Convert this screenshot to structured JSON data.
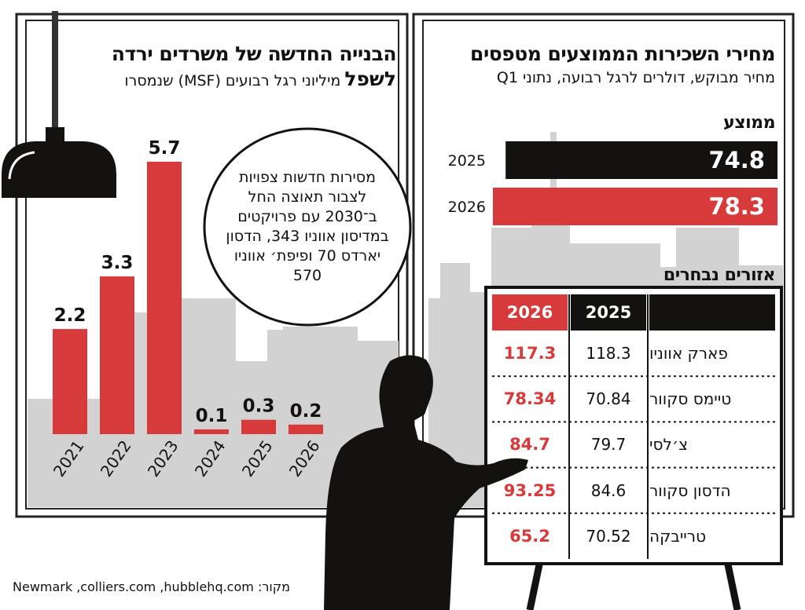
{
  "left_panel": {
    "title_line1": "הבנייה החדשה של משרדים ירדה",
    "title_line2": "לשפל",
    "subtitle": "מיליוני רגל רבועים (MSF) שנמסרו"
  },
  "note": "מסירות חדשות צפויות לצבור תאוצה החל ב־2030 עם פרויקטים במדיסון אווניו 343, הדסון יארדס 70 ופיפת׳ אווניו 570",
  "right_panel": {
    "title": "מחירי השכירות הממוצעים מטפסים",
    "subtitle": "מחיר מבוקש, דולרים לרגל רבועה, נתוני Q1",
    "average_label": "ממוצע",
    "regions_label": "אזורים נבחרים"
  },
  "source": "מקור: Newmark ,colliers.com ,hubblehq.com",
  "colors": {
    "red": "#d63a3a",
    "black": "#141111",
    "gray": "#d2d2d2"
  },
  "chart_data": [
    {
      "type": "bar",
      "categories": [
        "2021",
        "2022",
        "2023",
        "2024",
        "2025",
        "2026"
      ],
      "values": [
        2.2,
        3.3,
        5.7,
        0.1,
        0.3,
        0.2
      ],
      "value_labels": [
        "2.2",
        "3.3",
        "5.7",
        "0.1",
        "0.3",
        "0.2"
      ],
      "title": "הבנייה החדשה של משרדים ירדה לשפל",
      "ylabel": "מיליוני רגל רבועים (MSF) שנמסרו",
      "ylim": [
        0,
        6
      ]
    },
    {
      "type": "bar",
      "orientation": "horizontal",
      "categories": [
        "2025",
        "2026"
      ],
      "values": [
        74.8,
        78.3
      ],
      "value_labels": [
        "74.8",
        "78.3"
      ],
      "colors": [
        "#141111",
        "#d63a3a"
      ],
      "title": "מחירי השכירות הממוצעים מטפסים"
    },
    {
      "type": "table",
      "columns": [
        "",
        "2025",
        "2026"
      ],
      "rows": [
        {
          "name": "פארק אווניו",
          "v2025": "118.3",
          "v2026": "117.3"
        },
        {
          "name": "טיימס סקוור",
          "v2025": "70.84",
          "v2026": "78.34"
        },
        {
          "name": "צ׳לסי",
          "v2025": "79.7",
          "v2026": "84.7"
        },
        {
          "name": "הדסון סקוור",
          "v2025": "84.6",
          "v2026": "93.25"
        },
        {
          "name": "טרייבקה",
          "v2025": "70.52",
          "v2026": "65.2"
        }
      ]
    }
  ]
}
